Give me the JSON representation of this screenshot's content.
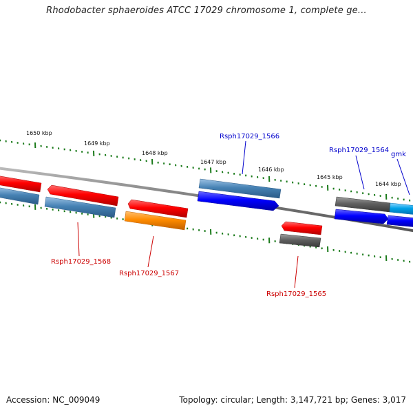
{
  "title": "Rhodobacter sphaeroides ATCC 17029 chromosome 1, complete ge...",
  "footer": {
    "accession": "Accession: NC_009049",
    "topology": "Topology: circular; Length: 3,147,721 bp; Genes: 3,017"
  },
  "scale_labels": [
    "1650 kbp",
    "1649 kbp",
    "1648 kbp",
    "1647 kbp",
    "1646 kbp",
    "1645 kbp",
    "1644 kbp"
  ],
  "gene_labels": {
    "g1566": "Rsph17029_1566",
    "g1564": "Rsph17029_1564",
    "gmk": "gmk",
    "g1568": "Rsph17029_1568",
    "g1567": "Rsph17029_1567",
    "g1565": "Rsph17029_1565"
  },
  "colors": {
    "red": "#ff0000",
    "steelblue": "#4682b4",
    "blue": "#0000ff",
    "orange": "#ff8c00",
    "gray": "#606060",
    "lightblue": "#00a2e8",
    "tick": "#1a7a1a",
    "backbone": "#777777",
    "label_blue": "#0000cc",
    "label_red": "#cc0000"
  }
}
